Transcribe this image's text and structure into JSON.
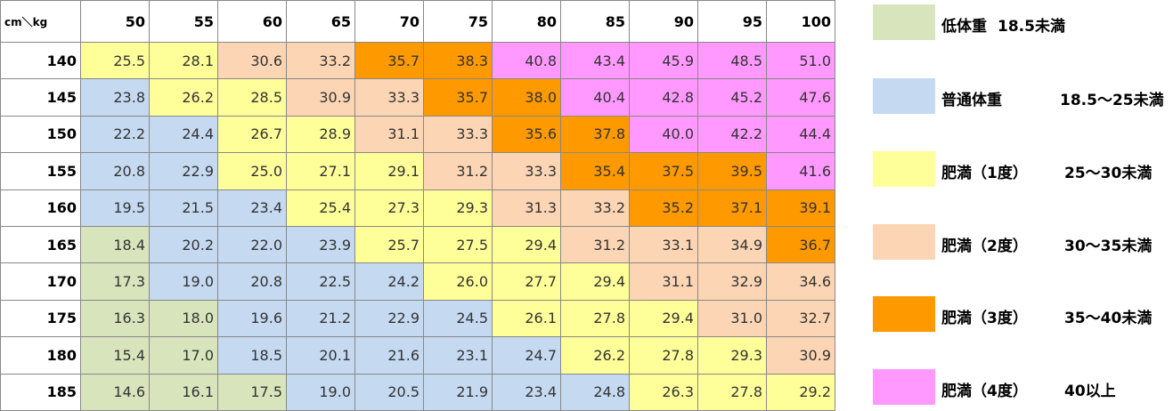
{
  "table": {
    "corner": "cm＼kg",
    "columns": [
      "50",
      "55",
      "60",
      "65",
      "70",
      "75",
      "80",
      "85",
      "90",
      "95",
      "100"
    ],
    "rows": [
      {
        "label": "140",
        "cells": [
          "25.5",
          "28.1",
          "30.6",
          "33.2",
          "35.7",
          "38.3",
          "40.8",
          "43.4",
          "45.9",
          "48.5",
          "51.0"
        ],
        "colors": [
          "#ffff99",
          "#ffff99",
          "#fcd5b4",
          "#fcd5b4",
          "#ff9900",
          "#ff9900",
          "#ff99ff",
          "#ff99ff",
          "#ff99ff",
          "#ff99ff",
          "#ff99ff"
        ]
      },
      {
        "label": "145",
        "cells": [
          "23.8",
          "26.2",
          "28.5",
          "30.9",
          "33.3",
          "35.7",
          "38.0",
          "40.4",
          "42.8",
          "45.2",
          "47.6"
        ],
        "colors": [
          "#c5d9f1",
          "#ffff99",
          "#ffff99",
          "#fcd5b4",
          "#fcd5b4",
          "#ff9900",
          "#ff9900",
          "#ff99ff",
          "#ff99ff",
          "#ff99ff",
          "#ff99ff"
        ]
      },
      {
        "label": "150",
        "cells": [
          "22.2",
          "24.4",
          "26.7",
          "28.9",
          "31.1",
          "33.3",
          "35.6",
          "37.8",
          "40.0",
          "42.2",
          "44.4"
        ],
        "colors": [
          "#c5d9f1",
          "#c5d9f1",
          "#ffff99",
          "#ffff99",
          "#fcd5b4",
          "#fcd5b4",
          "#ff9900",
          "#ff9900",
          "#ff99ff",
          "#ff99ff",
          "#ff99ff"
        ]
      },
      {
        "label": "155",
        "cells": [
          "20.8",
          "22.9",
          "25.0",
          "27.1",
          "29.1",
          "31.2",
          "33.3",
          "35.4",
          "37.5",
          "39.5",
          "41.6"
        ],
        "colors": [
          "#c5d9f1",
          "#c5d9f1",
          "#ffff99",
          "#ffff99",
          "#ffff99",
          "#fcd5b4",
          "#fcd5b4",
          "#ff9900",
          "#ff9900",
          "#ff9900",
          "#ff99ff"
        ]
      },
      {
        "label": "160",
        "cells": [
          "19.5",
          "21.5",
          "23.4",
          "25.4",
          "27.3",
          "29.3",
          "31.3",
          "33.2",
          "35.2",
          "37.1",
          "39.1"
        ],
        "colors": [
          "#c5d9f1",
          "#c5d9f1",
          "#c5d9f1",
          "#ffff99",
          "#ffff99",
          "#ffff99",
          "#fcd5b4",
          "#fcd5b4",
          "#ff9900",
          "#ff9900",
          "#ff9900"
        ]
      },
      {
        "label": "165",
        "cells": [
          "18.4",
          "20.2",
          "22.0",
          "23.9",
          "25.7",
          "27.5",
          "29.4",
          "31.2",
          "33.1",
          "34.9",
          "36.7"
        ],
        "colors": [
          "#d8e4bc",
          "#c5d9f1",
          "#c5d9f1",
          "#c5d9f1",
          "#ffff99",
          "#ffff99",
          "#ffff99",
          "#fcd5b4",
          "#fcd5b4",
          "#fcd5b4",
          "#ff9900"
        ]
      },
      {
        "label": "170",
        "cells": [
          "17.3",
          "19.0",
          "20.8",
          "22.5",
          "24.2",
          "26.0",
          "27.7",
          "29.4",
          "31.1",
          "32.9",
          "34.6"
        ],
        "colors": [
          "#d8e4bc",
          "#c5d9f1",
          "#c5d9f1",
          "#c5d9f1",
          "#c5d9f1",
          "#ffff99",
          "#ffff99",
          "#ffff99",
          "#fcd5b4",
          "#fcd5b4",
          "#fcd5b4"
        ]
      },
      {
        "label": "175",
        "cells": [
          "16.3",
          "18.0",
          "19.6",
          "21.2",
          "22.9",
          "24.5",
          "26.1",
          "27.8",
          "29.4",
          "31.0",
          "32.7"
        ],
        "colors": [
          "#d8e4bc",
          "#d8e4bc",
          "#c5d9f1",
          "#c5d9f1",
          "#c5d9f1",
          "#c5d9f1",
          "#ffff99",
          "#ffff99",
          "#ffff99",
          "#fcd5b4",
          "#fcd5b4"
        ]
      },
      {
        "label": "180",
        "cells": [
          "15.4",
          "17.0",
          "18.5",
          "20.1",
          "21.6",
          "23.1",
          "24.7",
          "26.2",
          "27.8",
          "29.3",
          "30.9"
        ],
        "colors": [
          "#d8e4bc",
          "#d8e4bc",
          "#c5d9f1",
          "#c5d9f1",
          "#c5d9f1",
          "#c5d9f1",
          "#c5d9f1",
          "#ffff99",
          "#ffff99",
          "#ffff99",
          "#fcd5b4"
        ]
      },
      {
        "label": "185",
        "cells": [
          "14.6",
          "16.1",
          "17.5",
          "19.0",
          "20.5",
          "21.9",
          "23.4",
          "24.8",
          "26.3",
          "27.8",
          "29.2"
        ],
        "colors": [
          "#d8e4bc",
          "#d8e4bc",
          "#d8e4bc",
          "#c5d9f1",
          "#c5d9f1",
          "#c5d9f1",
          "#c5d9f1",
          "#c5d9f1",
          "#ffff99",
          "#ffff99",
          "#ffff99"
        ]
      }
    ]
  },
  "legend": [
    {
      "label": "低体重",
      "range": "18.5未満",
      "color": "#d8e4bc"
    },
    {
      "label": "普通体重",
      "range": "18.5～25未満",
      "color": "#c5d9f1"
    },
    {
      "label": "肥満（1度）",
      "range": "25～30未満",
      "color": "#ffff99"
    },
    {
      "label": "肥満（2度）",
      "range": "30～35未満",
      "color": "#fcd5b4"
    },
    {
      "label": "肥満（3度）",
      "range": "35～40未満",
      "color": "#ff9900"
    },
    {
      "label": "肥満（4度）",
      "range": "40以上",
      "color": "#ff99ff"
    }
  ]
}
